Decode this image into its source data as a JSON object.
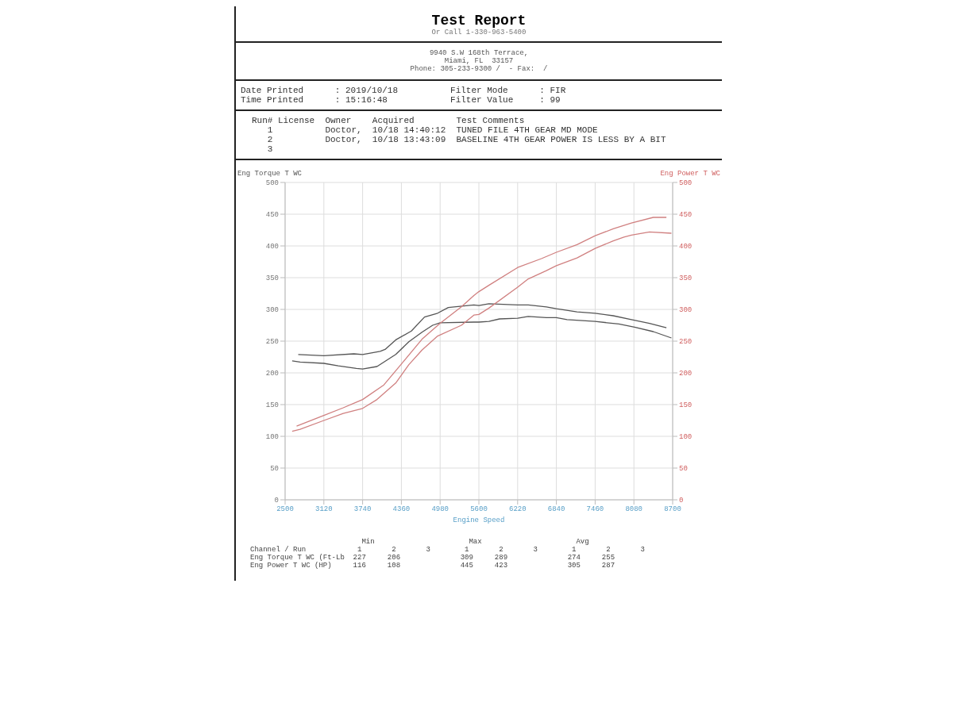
{
  "chart_data": {
    "type": "line",
    "title": "Test Report",
    "annotations": [
      "Or Call 1-330-963-5400",
      "9940 S.W 168th Terrace,",
      "Miami, FL  33157",
      "Phone: 305-233-9300 /  - Fax:  /",
      "Date Printed      : 2019/10/18          Filter Mode      : FIR",
      "Time Printed      : 15:16:48            Filter Value     : 99",
      "Run# License  Owner    Acquired        Test Comments",
      "   1          Doctor,  10/18 14:40:12  TUNED FILE 4TH GEAR MD MODE",
      "   2          Doctor,  10/18 13:43:09  BASELINE 4TH GEAR POWER IS LESS BY A BIT",
      "   3",
      "                          Min                      Max                      Avg",
      "Channel / Run            1       2       3        1       2       3        1       2       3",
      "Eng Torque T WC (Ft-Lb  227     206              309     289              274     255",
      "Eng Power T WC (HP)     116     108              445     423              305     287"
    ],
    "xlabel": "Engine Speed",
    "ylabel": "Eng Torque T WC",
    "y2label": "Eng Power T WC",
    "xlim": [
      2500,
      8700
    ],
    "xticks": [
      2500,
      3120,
      3740,
      4360,
      4980,
      5600,
      6220,
      6840,
      7460,
      8080,
      8700
    ],
    "ylim": [
      0,
      500
    ],
    "yticks": [
      0,
      50,
      100,
      150,
      200,
      250,
      300,
      350,
      400,
      450,
      500
    ],
    "y2lim": [
      0,
      500
    ],
    "y2ticks": [
      0,
      50,
      100,
      150,
      200,
      250,
      300,
      350,
      400,
      450,
      500
    ],
    "grid": true,
    "marker": "none",
    "line_style": "solid",
    "series": [
      {
        "color": "#555555",
        "x": [
          2710,
          3120,
          3600,
          3740,
          4020,
          4100,
          4270,
          4520,
          4730,
          4940,
          5110,
          5520,
          5600,
          5760,
          6220,
          6390,
          6680,
          6840,
          7170,
          7460,
          7750,
          8040,
          8330,
          8600
        ],
        "values": [
          229,
          227,
          230,
          229,
          234,
          237,
          252,
          266,
          288,
          294,
          303,
          307,
          306,
          309,
          307,
          307,
          304,
          301,
          296,
          294,
          290,
          284,
          278,
          271
        ]
      },
      {
        "color": "#555555",
        "x": [
          2613,
          2740,
          3120,
          3350,
          3640,
          3740,
          3970,
          4270,
          4480,
          4690,
          4860,
          4980,
          5520,
          5600,
          5760,
          5930,
          6220,
          6390,
          6680,
          6840,
          7010,
          7460,
          7840,
          8090,
          8390,
          8680
        ],
        "values": [
          219,
          217,
          215,
          211,
          207,
          206,
          210,
          229,
          249,
          264,
          275,
          279,
          280,
          280,
          281,
          285,
          286,
          289,
          287,
          287,
          284,
          281,
          277,
          272,
          265,
          255
        ]
      },
      {
        "color": "#d08080",
        "x": [
          2684,
          3120,
          3430,
          3740,
          4080,
          4360,
          4690,
          4980,
          5320,
          5520,
          5600,
          5760,
          6220,
          6600,
          6840,
          7170,
          7460,
          7750,
          8040,
          8390,
          8600
        ],
        "values": [
          116,
          133,
          145,
          158,
          181,
          214,
          253,
          278,
          304,
          322,
          328,
          338,
          366,
          380,
          390,
          402,
          416,
          427,
          436,
          445,
          445
        ]
      },
      {
        "color": "#d08080",
        "x": [
          2613,
          2740,
          3120,
          3430,
          3740,
          3970,
          4270,
          4480,
          4690,
          4940,
          5320,
          5520,
          5600,
          5760,
          6220,
          6390,
          6680,
          6840,
          7170,
          7460,
          7750,
          7920,
          8040,
          8330,
          8680
        ],
        "values": [
          108,
          111,
          125,
          136,
          144,
          158,
          184,
          213,
          236,
          258,
          275,
          291,
          292,
          302,
          335,
          348,
          361,
          369,
          381,
          396,
          408,
          414,
          417,
          422,
          420
        ]
      }
    ]
  }
}
